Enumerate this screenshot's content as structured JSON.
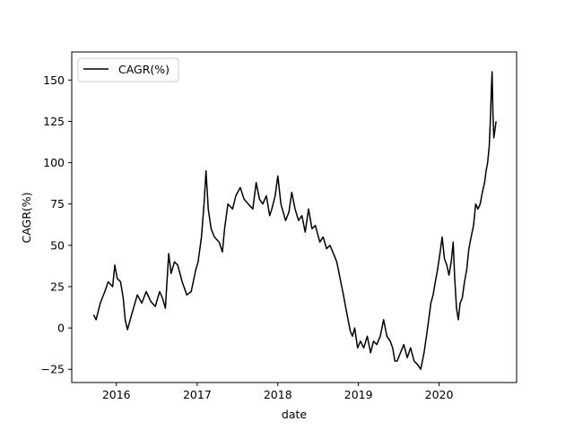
{
  "chart_data": {
    "type": "line",
    "title": "",
    "xlabel": "date",
    "ylabel": "CAGR(%)",
    "legend": {
      "placement": "top-left",
      "entries": [
        "CAGR(%)"
      ]
    },
    "grid": false,
    "xlim": [
      "2015-06-13",
      "2020-12-17"
    ],
    "ylim": [
      -33,
      167
    ],
    "x_ticks": [
      "2016",
      "2017",
      "2018",
      "2019",
      "2020"
    ],
    "x_tick_dates": [
      "2016-01-01",
      "2017-01-01",
      "2018-01-01",
      "2019-01-01",
      "2020-01-01"
    ],
    "y_ticks": [
      -25,
      0,
      25,
      50,
      75,
      100,
      125,
      150
    ],
    "series": [
      {
        "name": "CAGR(%)",
        "color": "#000000",
        "x": [
          "2015-09-20",
          "2015-10-01",
          "2015-10-20",
          "2015-11-10",
          "2015-11-25",
          "2015-12-15",
          "2015-12-25",
          "2016-01-05",
          "2016-01-20",
          "2016-02-01",
          "2016-02-10",
          "2016-02-20",
          "2016-03-10",
          "2016-04-05",
          "2016-04-25",
          "2016-05-15",
          "2016-06-05",
          "2016-06-25",
          "2016-07-15",
          "2016-07-28",
          "2016-08-10",
          "2016-08-25",
          "2016-09-05",
          "2016-09-20",
          "2016-10-05",
          "2016-10-25",
          "2016-11-15",
          "2016-12-05",
          "2016-12-25",
          "2017-01-05",
          "2017-01-20",
          "2017-02-01",
          "2017-02-10",
          "2017-02-20",
          "2017-03-05",
          "2017-03-20",
          "2017-04-10",
          "2017-04-25",
          "2017-05-05",
          "2017-05-20",
          "2017-06-10",
          "2017-06-25",
          "2017-07-15",
          "2017-08-01",
          "2017-08-20",
          "2017-09-10",
          "2017-09-25",
          "2017-10-10",
          "2017-10-25",
          "2017-11-10",
          "2017-11-25",
          "2017-12-05",
          "2017-12-20",
          "2018-01-01",
          "2018-01-15",
          "2018-02-05",
          "2018-02-20",
          "2018-03-05",
          "2018-03-20",
          "2018-04-05",
          "2018-04-20",
          "2018-05-05",
          "2018-05-20",
          "2018-06-05",
          "2018-06-20",
          "2018-07-10",
          "2018-07-25",
          "2018-08-10",
          "2018-08-25",
          "2018-09-10",
          "2018-09-25",
          "2018-10-10",
          "2018-10-25",
          "2018-11-05",
          "2018-11-15",
          "2018-11-25",
          "2018-12-05",
          "2018-12-15",
          "2018-12-28",
          "2019-01-10",
          "2019-01-25",
          "2019-02-10",
          "2019-02-25",
          "2019-03-10",
          "2019-03-25",
          "2019-04-10",
          "2019-04-25",
          "2019-05-10",
          "2019-05-25",
          "2019-06-05",
          "2019-06-15",
          "2019-06-25",
          "2019-07-10",
          "2019-07-25",
          "2019-08-10",
          "2019-08-25",
          "2019-09-10",
          "2019-09-25",
          "2019-10-10",
          "2019-10-25",
          "2019-11-05",
          "2019-11-15",
          "2019-11-25",
          "2019-12-05",
          "2019-12-15",
          "2019-12-25",
          "2020-01-05",
          "2020-01-15",
          "2020-01-25",
          "2020-02-05",
          "2020-02-15",
          "2020-02-25",
          "2020-03-05",
          "2020-03-12",
          "2020-03-20",
          "2020-03-28",
          "2020-04-05",
          "2020-04-15",
          "2020-04-25",
          "2020-05-05",
          "2020-05-15",
          "2020-05-25",
          "2020-06-05",
          "2020-06-15",
          "2020-06-25",
          "2020-07-05",
          "2020-07-15",
          "2020-07-25",
          "2020-08-01",
          "2020-08-08",
          "2020-08-15",
          "2020-08-20",
          "2020-08-25",
          "2020-08-28",
          "2020-09-01",
          "2020-09-05",
          "2020-09-10",
          "2020-09-15"
        ],
        "y": [
          8,
          5,
          15,
          22,
          28,
          25,
          38,
          30,
          28,
          18,
          5,
          -1,
          8,
          20,
          15,
          22,
          16,
          13,
          22,
          18,
          12,
          45,
          33,
          40,
          38,
          28,
          20,
          22,
          35,
          40,
          55,
          75,
          95,
          72,
          60,
          55,
          52,
          46,
          60,
          75,
          72,
          80,
          85,
          78,
          75,
          72,
          88,
          78,
          75,
          80,
          68,
          72,
          80,
          92,
          75,
          65,
          70,
          82,
          72,
          65,
          68,
          58,
          72,
          60,
          62,
          52,
          55,
          48,
          50,
          45,
          40,
          30,
          20,
          12,
          5,
          -2,
          -5,
          0,
          -12,
          -8,
          -12,
          -5,
          -15,
          -8,
          -10,
          -5,
          5,
          -5,
          -8,
          -12,
          -20,
          -20,
          -15,
          -10,
          -18,
          -12,
          -20,
          -22,
          -25,
          -15,
          -5,
          5,
          15,
          20,
          28,
          35,
          45,
          55,
          42,
          38,
          32,
          40,
          52,
          30,
          12,
          5,
          15,
          18,
          28,
          35,
          48,
          55,
          62,
          75,
          72,
          75,
          82,
          88,
          95,
          100,
          110,
          125,
          145,
          155,
          130,
          115,
          120,
          125
        ]
      }
    ]
  }
}
